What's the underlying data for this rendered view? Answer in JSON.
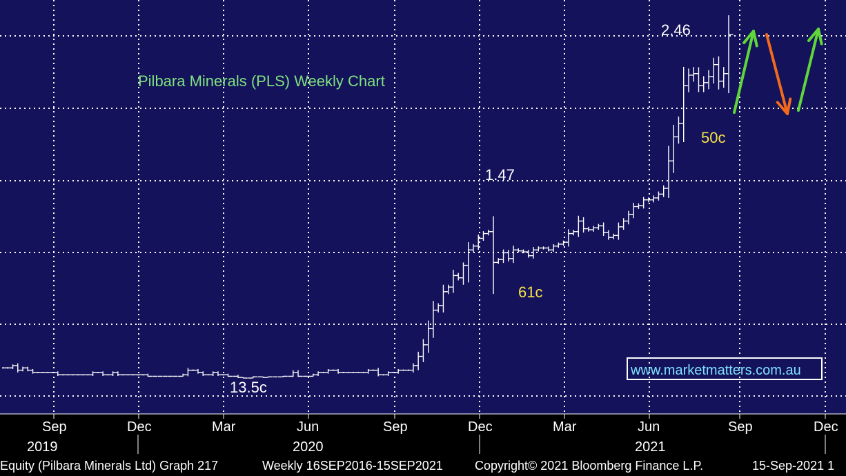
{
  "colors": {
    "plot_bg": "#14125a",
    "axis_bg": "#000000",
    "grid": "#ffffff",
    "price": "#ffffff",
    "title": "#7fe07f",
    "annotation_low": "#f7e24a",
    "arrow_up": "#5fd63a",
    "arrow_down": "#f26a1b",
    "website_border": "#ffffff",
    "website_text": "#7fe0ff"
  },
  "chart_data": {
    "type": "line",
    "title": "Pilbara Minerals (PLS) Weekly Chart",
    "x_tick_months": [
      "Sep",
      "Dec",
      "Mar",
      "Jun",
      "Sep",
      "Dec",
      "Mar",
      "Jun",
      "Sep",
      "Dec"
    ],
    "x_tick_years": [
      "2019",
      "2020",
      "2021"
    ],
    "series": [
      {
        "values": [
          0.17,
          0.17,
          0.18,
          0.16,
          0.17,
          0.16,
          0.15,
          0.15,
          0.15,
          0.15,
          0.15,
          0.14,
          0.14,
          0.14,
          0.14,
          0.14,
          0.14,
          0.14,
          0.15,
          0.15,
          0.14,
          0.14,
          0.15,
          0.14,
          0.14,
          0.14,
          0.14,
          0.14,
          0.14,
          0.13,
          0.13,
          0.13,
          0.13,
          0.13,
          0.13,
          0.13,
          0.14,
          0.16,
          0.16,
          0.15,
          0.14,
          0.14,
          0.15,
          0.14,
          0.14,
          0.13,
          0.13,
          0.11,
          0.1,
          0.1,
          0.12,
          0.12,
          0.11,
          0.12,
          0.12,
          0.12,
          0.13,
          0.13,
          0.15,
          0.13,
          0.13,
          0.13,
          0.14,
          0.15,
          0.15,
          0.16,
          0.16,
          0.15,
          0.15,
          0.15,
          0.15,
          0.15,
          0.15,
          0.16,
          0.16,
          0.14,
          0.14,
          0.15,
          0.15,
          0.16,
          0.16,
          0.16,
          0.18,
          0.22,
          0.27,
          0.34,
          0.42,
          0.44,
          0.5,
          0.52,
          0.57,
          0.56,
          0.62,
          0.78,
          0.82,
          0.9,
          0.95,
          0.97,
          0.65,
          0.68,
          0.75,
          0.69,
          0.78,
          0.77,
          0.76,
          0.72,
          0.78,
          0.8,
          0.8,
          0.78,
          0.82,
          0.84,
          0.86,
          0.95,
          0.97,
          1.08,
          1.0,
          0.99,
          1.01,
          1.03,
          0.96,
          0.91,
          0.93,
          1.02,
          1.08,
          1.15,
          1.23,
          1.24,
          1.3,
          1.3,
          1.32,
          1.36,
          1.42,
          1.62,
          1.78,
          1.87,
          2.12,
          2.19,
          2.2,
          2.12,
          2.14,
          2.18,
          2.26,
          2.15,
          2.2,
          2.46
        ]
      }
    ],
    "annotations": [
      "2.46",
      "1.47",
      "61c",
      "50c",
      "13.5c"
    ],
    "ylim": [
      0,
      2.6
    ],
    "grid": true
  },
  "watermark": "www.marketmatters.com.au",
  "footer": {
    "left": "Equity (Pilbara Minerals Ltd) Graph 217",
    "middle": "Weekly 16SEP2016-15SEP2021",
    "copyright": "Copyright© 2021 Bloomberg Finance L.P.",
    "date": "15-Sep-2021 1"
  }
}
